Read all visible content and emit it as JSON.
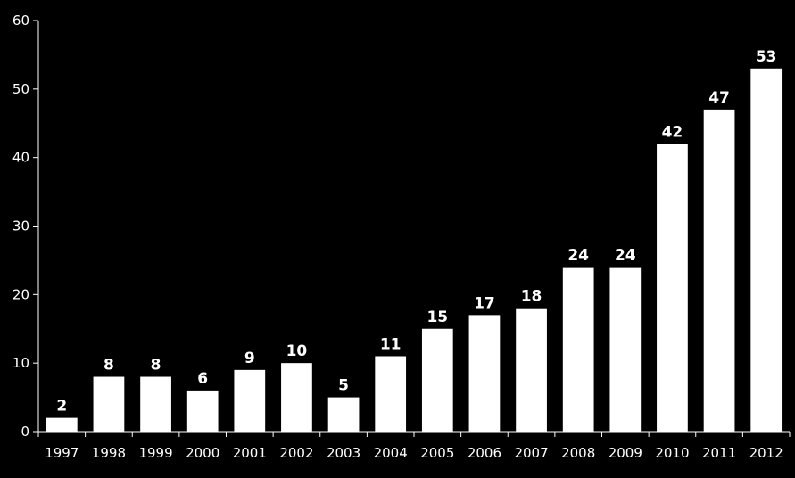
{
  "chart_data": {
    "type": "bar",
    "title": "",
    "xlabel": "",
    "ylabel": "",
    "categories": [
      "1997",
      "1998",
      "1999",
      "2000",
      "2001",
      "2002",
      "2003",
      "2004",
      "2005",
      "2006",
      "2007",
      "2008",
      "2009",
      "2010",
      "2011",
      "2012"
    ],
    "values": [
      2,
      8,
      8,
      6,
      9,
      10,
      5,
      11,
      15,
      17,
      18,
      24,
      24,
      42,
      47,
      53
    ],
    "data_labels": [
      "2",
      "8",
      "8",
      "6",
      "9",
      "10",
      "5",
      "11",
      "15",
      "17",
      "18",
      "24",
      "24",
      "42",
      "47",
      "53"
    ],
    "ylim": [
      0,
      60
    ],
    "yticks": [
      0,
      10,
      20,
      30,
      40,
      50,
      60
    ],
    "ytick_labels": [
      "0",
      "10",
      "20",
      "30",
      "40",
      "50",
      "60"
    ],
    "grid": false,
    "legend": "none",
    "colors": {
      "background": "#000000",
      "bar": "#ffffff",
      "axis": "#ffffff",
      "text": "#ffffff"
    }
  }
}
